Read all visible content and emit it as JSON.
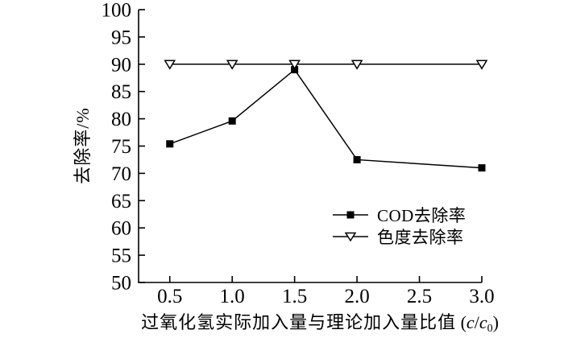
{
  "figure": {
    "background": "#ffffff",
    "ink": "#000000"
  },
  "chart_data": {
    "type": "line",
    "title": "",
    "xlabel": "过氧化氢实际加入量与理论加入量比值",
    "xlabel_formula": {
      "open": " (",
      "var1": "c",
      "slash": "/",
      "var2": "c",
      "subscript": "0",
      "close": ")"
    },
    "ylabel": "去除率/%",
    "xlim": [
      0.25,
      3.0
    ],
    "ylim": [
      50,
      100
    ],
    "x_ticks": [
      0.5,
      1.0,
      1.5,
      2.0,
      2.5,
      3.0
    ],
    "y_ticks": [
      50,
      55,
      60,
      65,
      70,
      75,
      80,
      85,
      90,
      95,
      100
    ],
    "grid": false,
    "legend_position": "inside-lower-right",
    "x": [
      0.5,
      1.0,
      1.5,
      2.0,
      3.0
    ],
    "series": [
      {
        "name": "COD去除率",
        "marker": "filled-square",
        "color": "#000000",
        "values": [
          75.4,
          79.6,
          89.0,
          72.5,
          71.0
        ]
      },
      {
        "name": "色度去除率",
        "marker": "open-down-triangle",
        "color": "#000000",
        "values": [
          90,
          90,
          90,
          90,
          90
        ]
      }
    ]
  }
}
